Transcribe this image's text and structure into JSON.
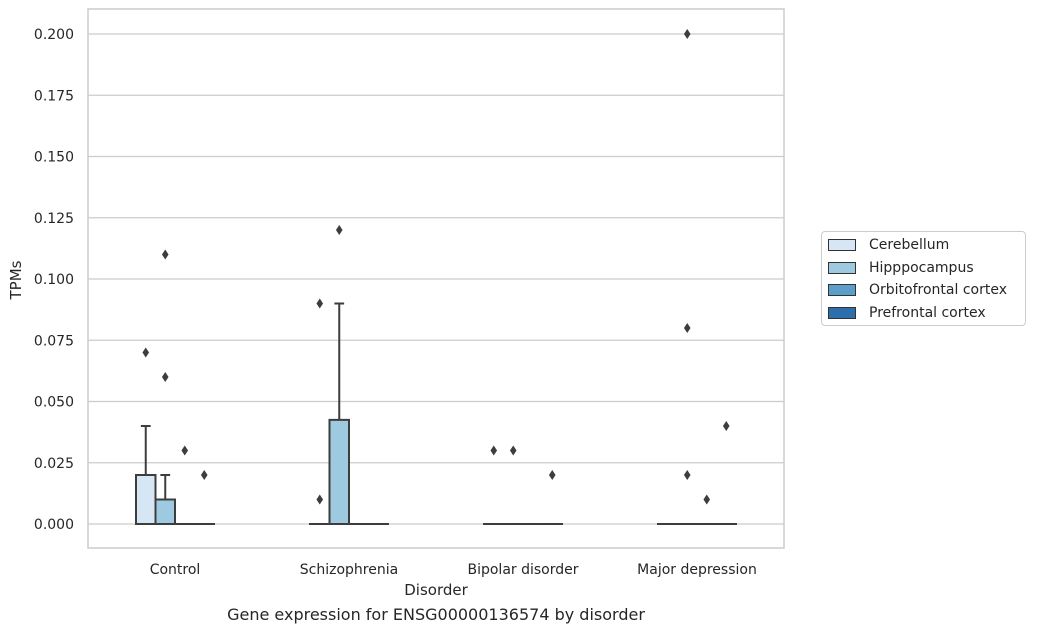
{
  "chart_data": {
    "type": "box",
    "xlabel": "Disorder",
    "ylabel": "TPMs",
    "caption": "Gene expression for ENSG00000136574 by disorder",
    "ylim": [
      -0.01,
      0.21
    ],
    "yticks": [
      "0.000",
      "0.025",
      "0.050",
      "0.075",
      "0.100",
      "0.125",
      "0.150",
      "0.175",
      "0.200"
    ],
    "categories": [
      "Control",
      "Schizophrenia",
      "Bipolar disorder",
      "Major depression"
    ],
    "grid": "horizontal",
    "legend_position": "right",
    "series": [
      {
        "name": "Cerebellum",
        "color": "#d6e6f4",
        "boxes": [
          {
            "category": "Control",
            "min": 0,
            "q1": 0,
            "median": 0,
            "q3": 0.02,
            "max": 0.04,
            "outliers": [
              0.07
            ]
          },
          {
            "category": "Schizophrenia",
            "min": 0,
            "q1": 0,
            "median": 0,
            "q3": 0,
            "max": 0,
            "outliers": [
              0.09,
              0.01
            ]
          },
          {
            "category": "Bipolar disorder",
            "min": 0,
            "q1": 0,
            "median": 0,
            "q3": 0,
            "max": 0,
            "outliers": [
              0.03
            ]
          },
          {
            "category": "Major depression",
            "min": 0,
            "q1": 0,
            "median": 0,
            "q3": 0,
            "max": 0,
            "outliers": []
          }
        ]
      },
      {
        "name": "Hipppocampus",
        "color": "#9ecae1",
        "boxes": [
          {
            "category": "Control",
            "min": 0,
            "q1": 0,
            "median": 0,
            "q3": 0.01,
            "max": 0.02,
            "outliers": [
              0.11,
              0.06
            ]
          },
          {
            "category": "Schizophrenia",
            "min": 0,
            "q1": 0,
            "median": 0,
            "q3": 0.0425,
            "max": 0.09,
            "outliers": [
              0.12
            ]
          },
          {
            "category": "Bipolar disorder",
            "min": 0,
            "q1": 0,
            "median": 0,
            "q3": 0,
            "max": 0,
            "outliers": [
              0.03
            ]
          },
          {
            "category": "Major depression",
            "min": 0,
            "q1": 0,
            "median": 0,
            "q3": 0,
            "max": 0,
            "outliers": [
              0.2,
              0.08,
              0.02
            ]
          }
        ]
      },
      {
        "name": "Orbitofrontal cortex",
        "color": "#5a9ec9",
        "boxes": [
          {
            "category": "Control",
            "min": 0,
            "q1": 0,
            "median": 0,
            "q3": 0,
            "max": 0,
            "outliers": [
              0.03
            ]
          },
          {
            "category": "Schizophrenia",
            "min": 0,
            "q1": 0,
            "median": 0,
            "q3": 0,
            "max": 0,
            "outliers": []
          },
          {
            "category": "Bipolar disorder",
            "min": 0,
            "q1": 0,
            "median": 0,
            "q3": 0,
            "max": 0,
            "outliers": []
          },
          {
            "category": "Major depression",
            "min": 0,
            "q1": 0,
            "median": 0,
            "q3": 0,
            "max": 0,
            "outliers": [
              0.01
            ]
          }
        ]
      },
      {
        "name": "Prefrontal cortex",
        "color": "#2c6fac",
        "boxes": [
          {
            "category": "Control",
            "min": 0,
            "q1": 0,
            "median": 0,
            "q3": 0,
            "max": 0,
            "outliers": [
              0.02
            ]
          },
          {
            "category": "Schizophrenia",
            "min": 0,
            "q1": 0,
            "median": 0,
            "q3": 0,
            "max": 0,
            "outliers": []
          },
          {
            "category": "Bipolar disorder",
            "min": 0,
            "q1": 0,
            "median": 0,
            "q3": 0,
            "max": 0,
            "outliers": [
              0.02
            ]
          },
          {
            "category": "Major depression",
            "min": 0,
            "q1": 0,
            "median": 0,
            "q3": 0,
            "max": 0,
            "outliers": [
              0.04
            ]
          }
        ]
      }
    ]
  },
  "legend": {
    "items": [
      {
        "label": "Cerebellum",
        "color": "#d6e6f4"
      },
      {
        "label": "Hipppocampus",
        "color": "#9ecae1"
      },
      {
        "label": "Orbitofrontal cortex",
        "color": "#5a9ec9"
      },
      {
        "label": "Prefrontal cortex",
        "color": "#2c6fac"
      }
    ]
  }
}
